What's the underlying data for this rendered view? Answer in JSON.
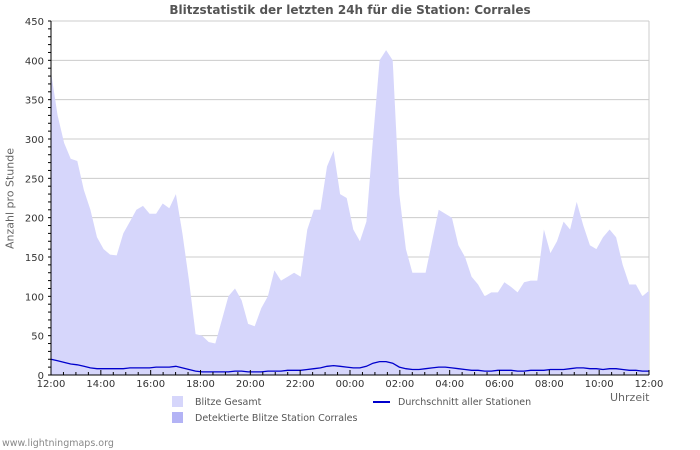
{
  "chart_data": {
    "type": "area",
    "title": "Blitzstatistik der letzten 24h für die Station: Corrales",
    "xlabel": "Uhrzeit",
    "ylabel": "Anzahl pro Stunde",
    "ylim": [
      0,
      450
    ],
    "yticks": [
      0,
      50,
      100,
      150,
      200,
      250,
      300,
      350,
      400,
      450
    ],
    "xticks": [
      "12:00",
      "14:00",
      "16:00",
      "18:00",
      "20:00",
      "22:00",
      "00:00",
      "02:00",
      "04:00",
      "06:00",
      "08:00",
      "10:00",
      "12:00"
    ],
    "grid": true,
    "legend_position": "bottom",
    "x_step_minutes": 20,
    "series": [
      {
        "name": "Blitze Gesamt",
        "type": "area",
        "color": "#d6d6fb",
        "values": [
          385,
          330,
          295,
          275,
          272,
          235,
          210,
          175,
          160,
          153,
          152,
          180,
          195,
          210,
          215,
          205,
          205,
          218,
          212,
          230,
          180,
          120,
          52,
          50,
          42,
          40,
          70,
          100,
          110,
          95,
          65,
          62,
          85,
          100,
          133,
          120,
          125,
          130,
          125,
          185,
          210,
          210,
          265,
          285,
          230,
          225,
          185,
          170,
          195,
          300,
          400,
          413,
          400,
          230,
          160,
          130,
          130,
          130,
          170,
          210,
          205,
          200,
          165,
          150,
          125,
          115,
          100,
          105,
          105,
          118,
          112,
          105,
          118,
          120,
          120,
          185,
          155,
          170,
          195,
          185,
          220,
          190,
          165,
          160,
          175,
          185,
          175,
          140,
          115,
          115,
          100,
          107
        ]
      },
      {
        "name": "Detektierte Blitze Station Corrales",
        "type": "area",
        "color": "#b3b3f5",
        "values": []
      },
      {
        "name": "Durchschnitt aller Stationen",
        "type": "line",
        "color": "#0000cc",
        "values": [
          20,
          18,
          16,
          14,
          13,
          11,
          9,
          8,
          8,
          8,
          8,
          8,
          9,
          9,
          9,
          9,
          10,
          10,
          10,
          11,
          9,
          7,
          5,
          4,
          4,
          4,
          4,
          4,
          5,
          5,
          4,
          4,
          4,
          5,
          5,
          5,
          6,
          6,
          6,
          7,
          8,
          9,
          11,
          12,
          11,
          10,
          9,
          9,
          11,
          15,
          17,
          17,
          15,
          10,
          8,
          7,
          7,
          8,
          9,
          10,
          10,
          9,
          8,
          7,
          6,
          6,
          5,
          5,
          6,
          6,
          6,
          5,
          5,
          6,
          6,
          6,
          7,
          7,
          7,
          8,
          9,
          9,
          8,
          8,
          7,
          8,
          8,
          7,
          6,
          6,
          5,
          5
        ]
      }
    ]
  },
  "legend": {
    "items": [
      {
        "label": "Blitze Gesamt",
        "color": "#d6d6fb"
      },
      {
        "label": "Detektierte Blitze Station Corrales",
        "color": "#b3b3f5"
      },
      {
        "label": "Durchschnitt aller Stationen",
        "color": "#0000cc"
      }
    ]
  },
  "credit": "www.lightningmaps.org"
}
